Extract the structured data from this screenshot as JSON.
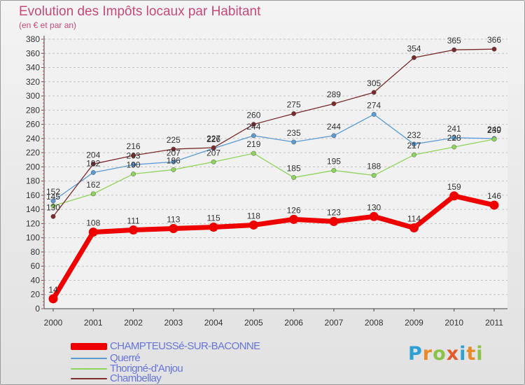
{
  "header": {
    "title": "Evolution des Impôts locaux par Habitant",
    "subtitle": "(en € et par an)"
  },
  "logo": {
    "text": "Proxiti",
    "colors": [
      "#2fa0d6",
      "#e8892a",
      "#8bc34a",
      "#e25a2a"
    ]
  },
  "chart_data": {
    "type": "line",
    "title": "Evolution des Impôts locaux par Habitant",
    "subtitle": "(en € et par an)",
    "xlabel": "",
    "ylabel": "",
    "x": [
      "2000",
      "2001",
      "2002",
      "2003",
      "2004",
      "2005",
      "2006",
      "2007",
      "2008",
      "2009",
      "2010",
      "2011"
    ],
    "ylim": [
      0,
      380
    ],
    "yticks": [
      0,
      20,
      40,
      60,
      80,
      100,
      120,
      140,
      160,
      180,
      200,
      220,
      240,
      260,
      280,
      300,
      320,
      340,
      360,
      380
    ],
    "grid": "horizontal dashed",
    "legend_position": "bottom-left",
    "series": [
      {
        "name": "CHAMPTEUSSé-SUR-BACONNE",
        "color": "#ee0000",
        "emphasis": true,
        "values": [
          14,
          108,
          111,
          113,
          115,
          118,
          126,
          123,
          130,
          114,
          159,
          146
        ],
        "labels": [
          "14",
          "108",
          "111",
          "113",
          "115",
          "118",
          "126",
          "123",
          "130",
          "114",
          "159",
          "146"
        ]
      },
      {
        "name": "Querré",
        "color": "#5b9bd5",
        "values": [
          152,
          192,
          203,
          207,
          226,
          244,
          235,
          244,
          274,
          232,
          241,
          240
        ],
        "labels": [
          "152",
          "192",
          "203",
          "207",
          "226",
          "244",
          "235",
          "244",
          "274",
          "232",
          "241",
          "240"
        ]
      },
      {
        "name": "Thorigné-d'Anjou",
        "color": "#8fd45a",
        "values": [
          145,
          162,
          190,
          196,
          207,
          219,
          185,
          195,
          188,
          217,
          228,
          239
        ],
        "labels": [
          "145",
          "162",
          "190",
          "196",
          "207",
          "219",
          "185",
          "195",
          "188",
          "217",
          "228",
          "239"
        ]
      },
      {
        "name": "Chambellay",
        "color": "#7a2a2a",
        "values": [
          130,
          204,
          216,
          225,
          227,
          260,
          275,
          289,
          305,
          354,
          365,
          366
        ],
        "labels": [
          "130",
          "204",
          "216",
          "225",
          "227",
          "260",
          "275",
          "289",
          "305",
          "354",
          "365",
          "366"
        ]
      }
    ]
  }
}
